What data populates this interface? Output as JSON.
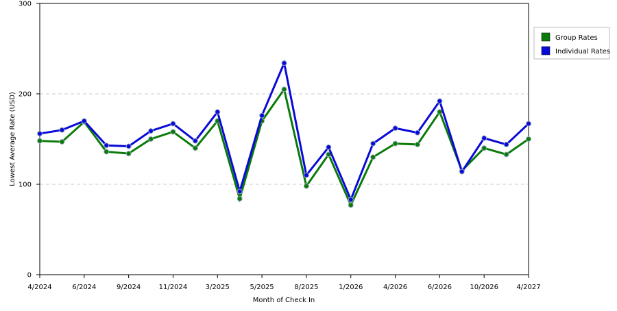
{
  "chart_data": {
    "type": "line",
    "x_label": "Month of Check In",
    "y_label": "Lowest Average Rate (USD)",
    "categories": [
      "4/2024",
      null,
      "6/2024",
      null,
      "9/2024",
      null,
      "11/2024",
      null,
      "3/2025",
      null,
      "5/2025",
      null,
      "8/2025",
      null,
      "1/2026",
      null,
      "4/2026",
      null,
      "6/2026",
      null,
      "10/2026",
      null,
      "4/2027"
    ],
    "series": [
      {
        "name": "Group Rates",
        "color": "#0a7a0a",
        "values": [
          148,
          147,
          169,
          136,
          134,
          150,
          158,
          140,
          170,
          84,
          170,
          205,
          98,
          133,
          77,
          130,
          145,
          144,
          180,
          115,
          140,
          133,
          150
        ]
      },
      {
        "name": "Individual Rates",
        "color": "#0a0ad8",
        "values": [
          156,
          160,
          170,
          143,
          142,
          159,
          167,
          148,
          180,
          92,
          176,
          234,
          110,
          141,
          83,
          145,
          162,
          157,
          192,
          114,
          151,
          144,
          167
        ]
      }
    ],
    "ylim": [
      0,
      300
    ],
    "yticks": [
      0,
      100,
      200,
      300
    ],
    "grid": true,
    "legend": "right"
  }
}
